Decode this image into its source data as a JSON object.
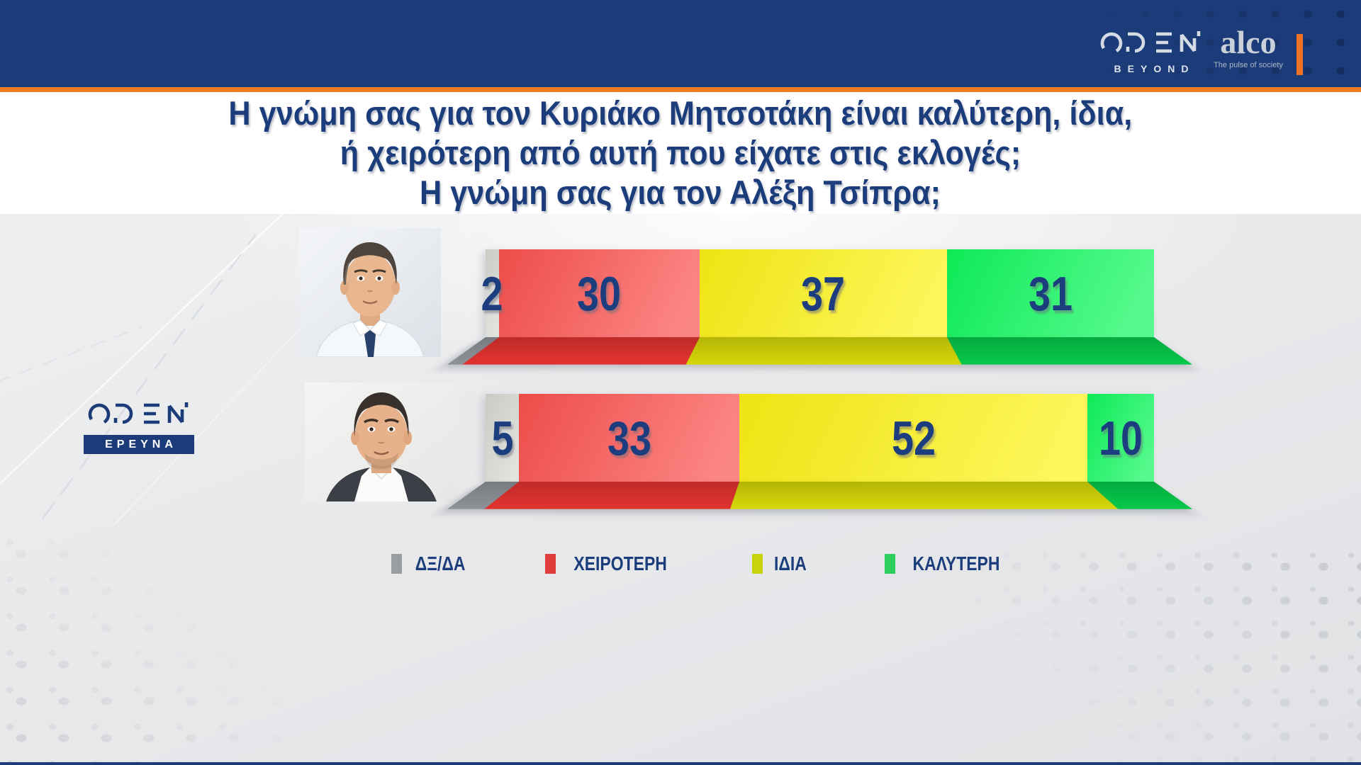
{
  "header": {
    "open_logo": {
      "brand": "OPEN",
      "tagline": "BEYOND"
    },
    "alco_logo": {
      "brand": "alco",
      "tagline": "The pulse of society"
    },
    "bg_color": "#1b3c78",
    "accent_color": "#ef7b23"
  },
  "title": {
    "lines": [
      "Η γνώμη σας για τον Κυριάκο Μητσοτάκη είναι καλύτερη, ίδια,",
      "ή χειρότερη από αυτή που είχατε στις εκλογές;",
      "Η γνώμη σας για τον Αλέξη Τσίπρα;"
    ],
    "color": "#1c3d7c"
  },
  "watermark": {
    "brand": "OPEN",
    "tagline": "ΕΡΕΥΝΑ"
  },
  "chart_data": {
    "type": "bar",
    "variant": "horizontal-stacked-100",
    "unit": "%",
    "title": "Η γνώμη σας για τον Κυριάκο Μητσοτάκη είναι καλύτερη, ίδια, ή χειρότερη από αυτή που είχατε στις εκλογές; Η γνώμη σας για τον Αλέξη Τσίπρα;",
    "categories": [
      "Κυριάκος Μητσοτάκης",
      "Αλέξης Τσίπρας"
    ],
    "series": [
      {
        "name": "ΔΞ/ΔΑ",
        "color": "#d5d7d1",
        "depth_color": "#8d9298",
        "values": [
          2,
          5
        ]
      },
      {
        "name": "ΧΕΙΡΟΤΕΡΗ",
        "color": "#fb514e",
        "depth_color": "#e23330",
        "values": [
          30,
          33
        ]
      },
      {
        "name": "ΙΔΙΑ",
        "color": "#fdf214",
        "depth_color": "#d6d708",
        "values": [
          37,
          52
        ]
      },
      {
        "name": "ΚΑΛΥΤΕΡΗ",
        "color": "#0ef85c",
        "depth_color": "#06c94a",
        "values": [
          31,
          10
        ]
      }
    ],
    "value_label_color": "#1d3e7e",
    "legend_position": "bottom",
    "legend_swatch_colors": [
      "#9b9ea1",
      "#e03c3c",
      "#c8d40b",
      "#2dd05f"
    ],
    "xlim": [
      0,
      100
    ],
    "grid": false
  }
}
